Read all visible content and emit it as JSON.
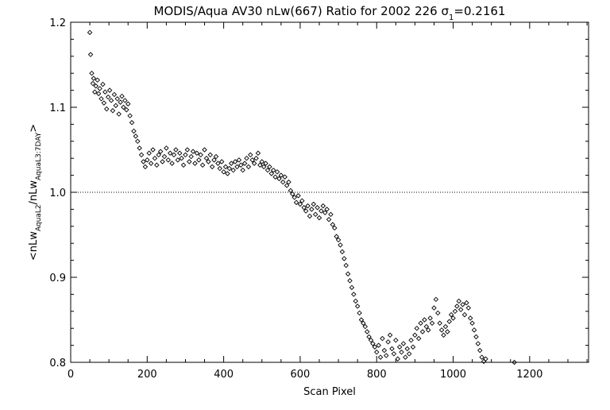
{
  "chart_data": {
    "type": "scatter",
    "title": "MODIS/Aqua AV30 nLw(667) Ratio for 2002 226 σ",
    "title_sub": "1",
    "title_tail": "=0.2161",
    "xlabel": "Scan Pixel",
    "ylabel": {
      "prefix": "<nLw",
      "sub1": "AquaL2",
      "mid": "/nLw",
      "sub2": "AquaL3:7DAY",
      "suffix": ">"
    },
    "xlim": [
      0,
      1354
    ],
    "ylim": [
      0.8,
      1.2
    ],
    "x_ticks": [
      0,
      200,
      400,
      600,
      800,
      1000,
      1200
    ],
    "x_tick_labels": [
      "0",
      "200",
      "400",
      "600",
      "800",
      "1000",
      "1200"
    ],
    "y_ticks": [
      0.8,
      0.9,
      1.0,
      1.1,
      1.2
    ],
    "y_tick_labels": [
      "0.8",
      "0.9",
      "1.0",
      "1.1",
      "1.2"
    ],
    "reference_line": {
      "y": 1.0,
      "style": "dotted"
    },
    "marker": "diamond",
    "grid": false,
    "series": [
      {
        "points": [
          [
            50,
            1.188
          ],
          [
            52,
            1.162
          ],
          [
            55,
            1.14
          ],
          [
            58,
            1.128
          ],
          [
            60,
            1.134
          ],
          [
            63,
            1.118
          ],
          [
            66,
            1.125
          ],
          [
            70,
            1.132
          ],
          [
            73,
            1.116
          ],
          [
            76,
            1.122
          ],
          [
            80,
            1.11
          ],
          [
            84,
            1.127
          ],
          [
            87,
            1.105
          ],
          [
            90,
            1.118
          ],
          [
            94,
            1.098
          ],
          [
            98,
            1.112
          ],
          [
            102,
            1.12
          ],
          [
            106,
            1.108
          ],
          [
            110,
            1.096
          ],
          [
            114,
            1.115
          ],
          [
            118,
            1.102
          ],
          [
            122,
            1.11
          ],
          [
            126,
            1.092
          ],
          [
            130,
            1.106
          ],
          [
            134,
            1.113
          ],
          [
            138,
            1.1
          ],
          [
            142,
            1.108
          ],
          [
            146,
            1.097
          ],
          [
            150,
            1.104
          ],
          [
            155,
            1.09
          ],
          [
            160,
            1.082
          ],
          [
            165,
            1.072
          ],
          [
            170,
            1.066
          ],
          [
            175,
            1.06
          ],
          [
            180,
            1.052
          ],
          [
            185,
            1.044
          ],
          [
            190,
            1.036
          ],
          [
            195,
            1.03
          ],
          [
            200,
            1.038
          ],
          [
            205,
            1.046
          ],
          [
            210,
            1.034
          ],
          [
            215,
            1.05
          ],
          [
            220,
            1.04
          ],
          [
            225,
            1.032
          ],
          [
            230,
            1.044
          ],
          [
            235,
            1.048
          ],
          [
            240,
            1.036
          ],
          [
            245,
            1.042
          ],
          [
            250,
            1.052
          ],
          [
            255,
            1.038
          ],
          [
            260,
            1.046
          ],
          [
            265,
            1.034
          ],
          [
            270,
            1.044
          ],
          [
            275,
            1.05
          ],
          [
            280,
            1.038
          ],
          [
            285,
            1.046
          ],
          [
            290,
            1.04
          ],
          [
            295,
            1.032
          ],
          [
            300,
            1.044
          ],
          [
            305,
            1.05
          ],
          [
            310,
            1.036
          ],
          [
            315,
            1.042
          ],
          [
            320,
            1.048
          ],
          [
            325,
            1.034
          ],
          [
            330,
            1.046
          ],
          [
            335,
            1.038
          ],
          [
            340,
            1.044
          ],
          [
            345,
            1.032
          ],
          [
            350,
            1.05
          ],
          [
            355,
            1.04
          ],
          [
            360,
            1.036
          ],
          [
            365,
            1.044
          ],
          [
            370,
            1.03
          ],
          [
            375,
            1.038
          ],
          [
            380,
            1.042
          ],
          [
            385,
            1.034
          ],
          [
            390,
            1.028
          ],
          [
            395,
            1.036
          ],
          [
            400,
            1.024
          ],
          [
            405,
            1.03
          ],
          [
            410,
            1.022
          ],
          [
            415,
            1.028
          ],
          [
            420,
            1.034
          ],
          [
            425,
            1.026
          ],
          [
            430,
            1.036
          ],
          [
            435,
            1.03
          ],
          [
            440,
            1.038
          ],
          [
            445,
            1.032
          ],
          [
            450,
            1.026
          ],
          [
            455,
            1.034
          ],
          [
            460,
            1.04
          ],
          [
            465,
            1.03
          ],
          [
            470,
            1.044
          ],
          [
            475,
            1.038
          ],
          [
            480,
            1.034
          ],
          [
            485,
            1.04
          ],
          [
            490,
            1.046
          ],
          [
            495,
            1.032
          ],
          [
            500,
            1.036
          ],
          [
            505,
            1.03
          ],
          [
            510,
            1.034
          ],
          [
            515,
            1.026
          ],
          [
            520,
            1.03
          ],
          [
            525,
            1.022
          ],
          [
            530,
            1.026
          ],
          [
            535,
            1.018
          ],
          [
            540,
            1.024
          ],
          [
            545,
            1.016
          ],
          [
            550,
            1.02
          ],
          [
            555,
            1.012
          ],
          [
            560,
            1.018
          ],
          [
            565,
            1.008
          ],
          [
            570,
            1.012
          ],
          [
            575,
            1.002
          ],
          [
            580,
            0.998
          ],
          [
            585,
            0.994
          ],
          [
            590,
            0.988
          ],
          [
            595,
            0.996
          ],
          [
            600,
            0.986
          ],
          [
            605,
            0.99
          ],
          [
            610,
            0.982
          ],
          [
            615,
            0.978
          ],
          [
            620,
            0.984
          ],
          [
            625,
            0.972
          ],
          [
            630,
            0.98
          ],
          [
            635,
            0.986
          ],
          [
            640,
            0.974
          ],
          [
            645,
            0.982
          ],
          [
            650,
            0.97
          ],
          [
            655,
            0.978
          ],
          [
            660,
            0.984
          ],
          [
            665,
            0.976
          ],
          [
            670,
            0.98
          ],
          [
            675,
            0.968
          ],
          [
            680,
            0.974
          ],
          [
            685,
            0.962
          ],
          [
            690,
            0.958
          ],
          [
            695,
            0.948
          ],
          [
            700,
            0.944
          ],
          [
            705,
            0.938
          ],
          [
            710,
            0.93
          ],
          [
            715,
            0.922
          ],
          [
            720,
            0.914
          ],
          [
            725,
            0.904
          ],
          [
            730,
            0.896
          ],
          [
            735,
            0.888
          ],
          [
            740,
            0.88
          ],
          [
            745,
            0.872
          ],
          [
            750,
            0.866
          ],
          [
            755,
            0.858
          ],
          [
            760,
            0.85
          ],
          [
            765,
            0.846
          ],
          [
            770,
            0.842
          ],
          [
            775,
            0.836
          ],
          [
            780,
            0.83
          ],
          [
            785,
            0.826
          ],
          [
            790,
            0.822
          ],
          [
            795,
            0.818
          ],
          [
            800,
            0.812
          ],
          [
            805,
            0.82
          ],
          [
            810,
            0.806
          ],
          [
            815,
            0.828
          ],
          [
            820,
            0.814
          ],
          [
            825,
            0.808
          ],
          [
            830,
            0.824
          ],
          [
            835,
            0.832
          ],
          [
            840,
            0.816
          ],
          [
            845,
            0.81
          ],
          [
            850,
            0.826
          ],
          [
            855,
            0.804
          ],
          [
            860,
            0.818
          ],
          [
            865,
            0.812
          ],
          [
            870,
            0.822
          ],
          [
            875,
            0.806
          ],
          [
            880,
            0.816
          ],
          [
            885,
            0.81
          ],
          [
            890,
            0.826
          ],
          [
            895,
            0.818
          ],
          [
            900,
            0.832
          ],
          [
            905,
            0.84
          ],
          [
            910,
            0.828
          ],
          [
            915,
            0.846
          ],
          [
            920,
            0.836
          ],
          [
            925,
            0.85
          ],
          [
            930,
            0.842
          ],
          [
            935,
            0.838
          ],
          [
            940,
            0.852
          ],
          [
            945,
            0.846
          ],
          [
            950,
            0.864
          ],
          [
            955,
            0.874
          ],
          [
            960,
            0.858
          ],
          [
            965,
            0.846
          ],
          [
            970,
            0.838
          ],
          [
            975,
            0.832
          ],
          [
            980,
            0.842
          ],
          [
            985,
            0.836
          ],
          [
            990,
            0.848
          ],
          [
            995,
            0.856
          ],
          [
            1000,
            0.852
          ],
          [
            1005,
            0.86
          ],
          [
            1010,
            0.866
          ],
          [
            1015,
            0.872
          ],
          [
            1020,
            0.862
          ],
          [
            1025,
            0.868
          ],
          [
            1030,
            0.856
          ],
          [
            1035,
            0.87
          ],
          [
            1040,
            0.864
          ],
          [
            1045,
            0.852
          ],
          [
            1050,
            0.846
          ],
          [
            1055,
            0.838
          ],
          [
            1060,
            0.83
          ],
          [
            1065,
            0.822
          ],
          [
            1070,
            0.814
          ],
          [
            1075,
            0.806
          ],
          [
            1080,
            0.801
          ],
          [
            1085,
            0.804
          ],
          [
            1090,
            0.798
          ],
          [
            1095,
            0.796
          ],
          [
            1130,
            0.798
          ],
          [
            1160,
            0.8
          ]
        ]
      }
    ]
  }
}
